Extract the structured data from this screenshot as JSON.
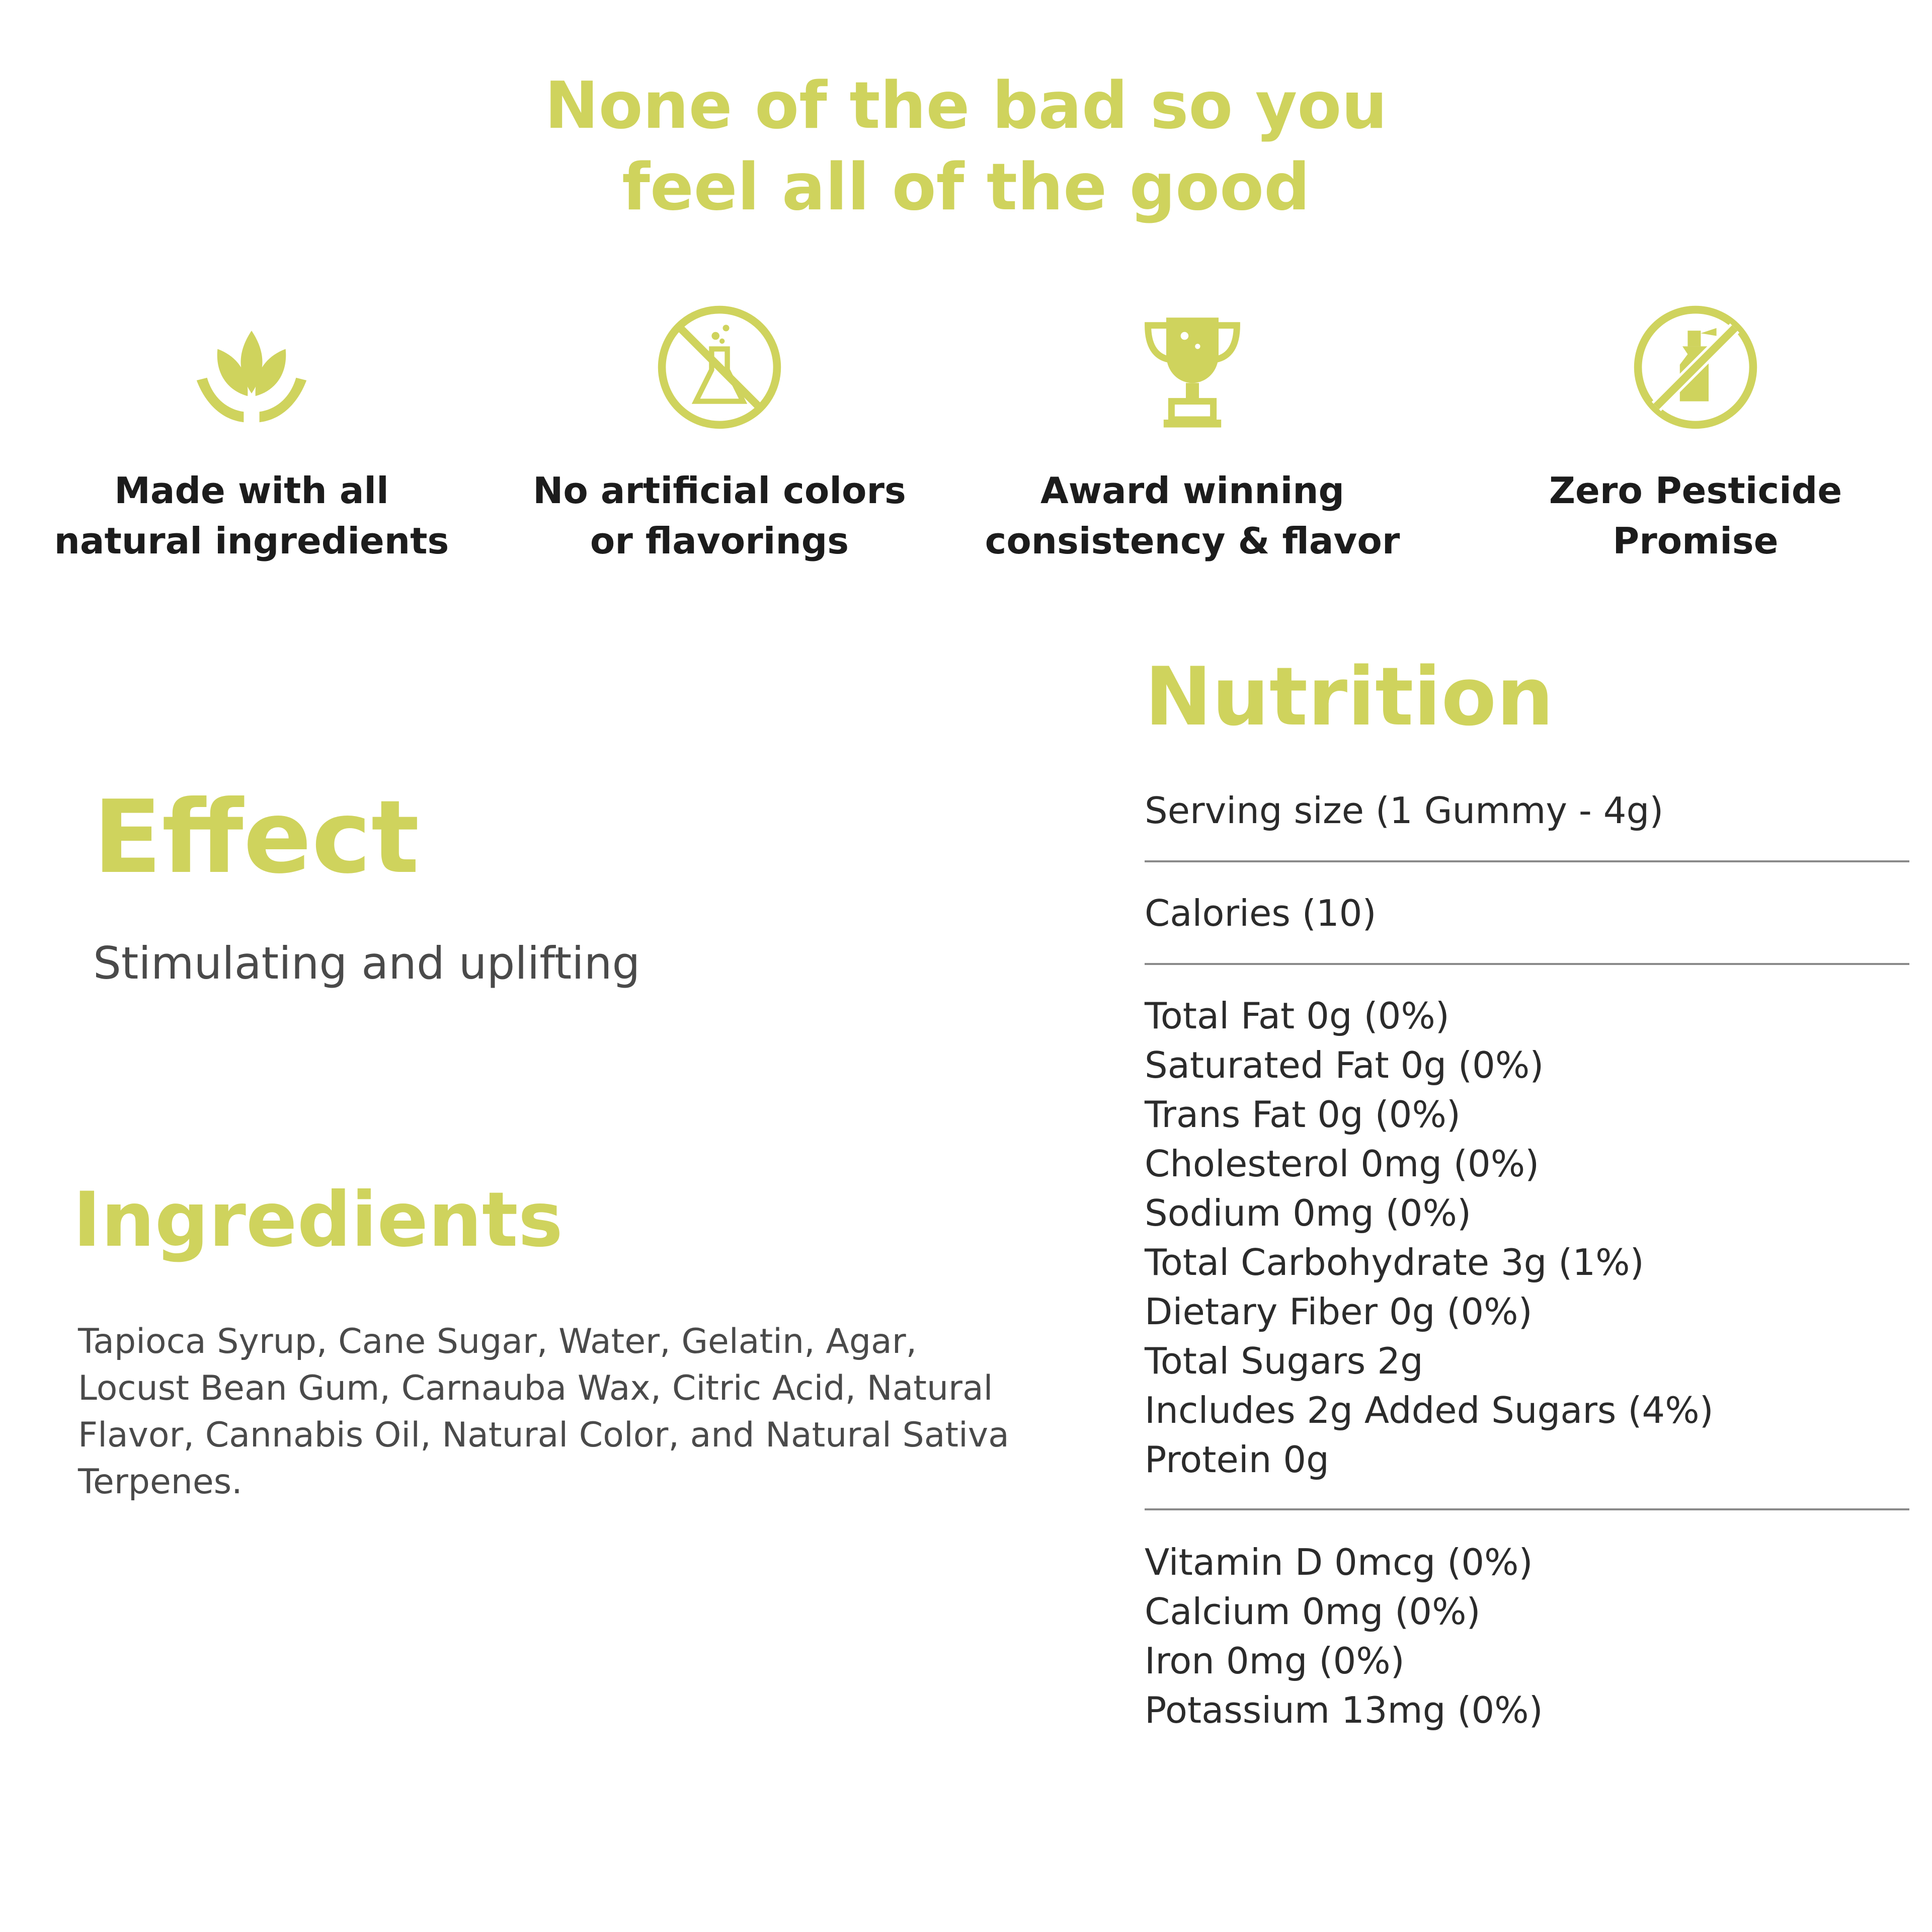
{
  "colors": {
    "accent": "#cfd35d",
    "heading_dark": "#1c1c1c",
    "body_text": "#4a4a4a",
    "divider": "#8a8a8a"
  },
  "headline": {
    "line1": "None of the bad so you",
    "line2": "feel all of the good"
  },
  "features": [
    {
      "icon": "leaves-hands-icon",
      "line1": "Made with all",
      "line2": "natural ingredients"
    },
    {
      "icon": "no-chemicals-icon",
      "line1": "No artificial colors",
      "line2": "or flavorings"
    },
    {
      "icon": "trophy-icon",
      "line1": "Award winning",
      "line2": "consistency & flavor"
    },
    {
      "icon": "no-pesticide-icon",
      "line1": "Zero Pesticide",
      "line2": "Promise"
    }
  ],
  "effect": {
    "title": "Effect",
    "text": "Stimulating and uplifting"
  },
  "ingredients": {
    "title": "Ingredients",
    "lines": [
      "Tapioca Syrup, Cane Sugar, Water, Gelatin, Agar,",
      "Locust Bean Gum, Carnauba Wax, Citric Acid, Natural",
      "Flavor, Cannabis Oil, Natural Color, and Natural Sativa",
      "Terpenes."
    ]
  },
  "nutrition": {
    "title": "Nutrition",
    "serving_size": "Serving size (1 Gummy - 4g)",
    "calories": "Calories (10)",
    "macros": [
      "Total Fat 0g (0%)",
      "Saturated Fat 0g (0%)",
      "Trans Fat 0g (0%)",
      "Cholesterol 0mg (0%)",
      "Sodium 0mg (0%)",
      "Total Carbohydrate 3g (1%)",
      "Dietary Fiber 0g (0%)",
      "Total Sugars 2g",
      "Includes 2g Added Sugars (4%)",
      "Protein 0g"
    ],
    "vitamins": [
      "Vitamin D 0mcg (0%)",
      "Calcium 0mg (0%)",
      "Iron 0mg (0%)",
      "Potassium 13mg (0%)"
    ]
  }
}
